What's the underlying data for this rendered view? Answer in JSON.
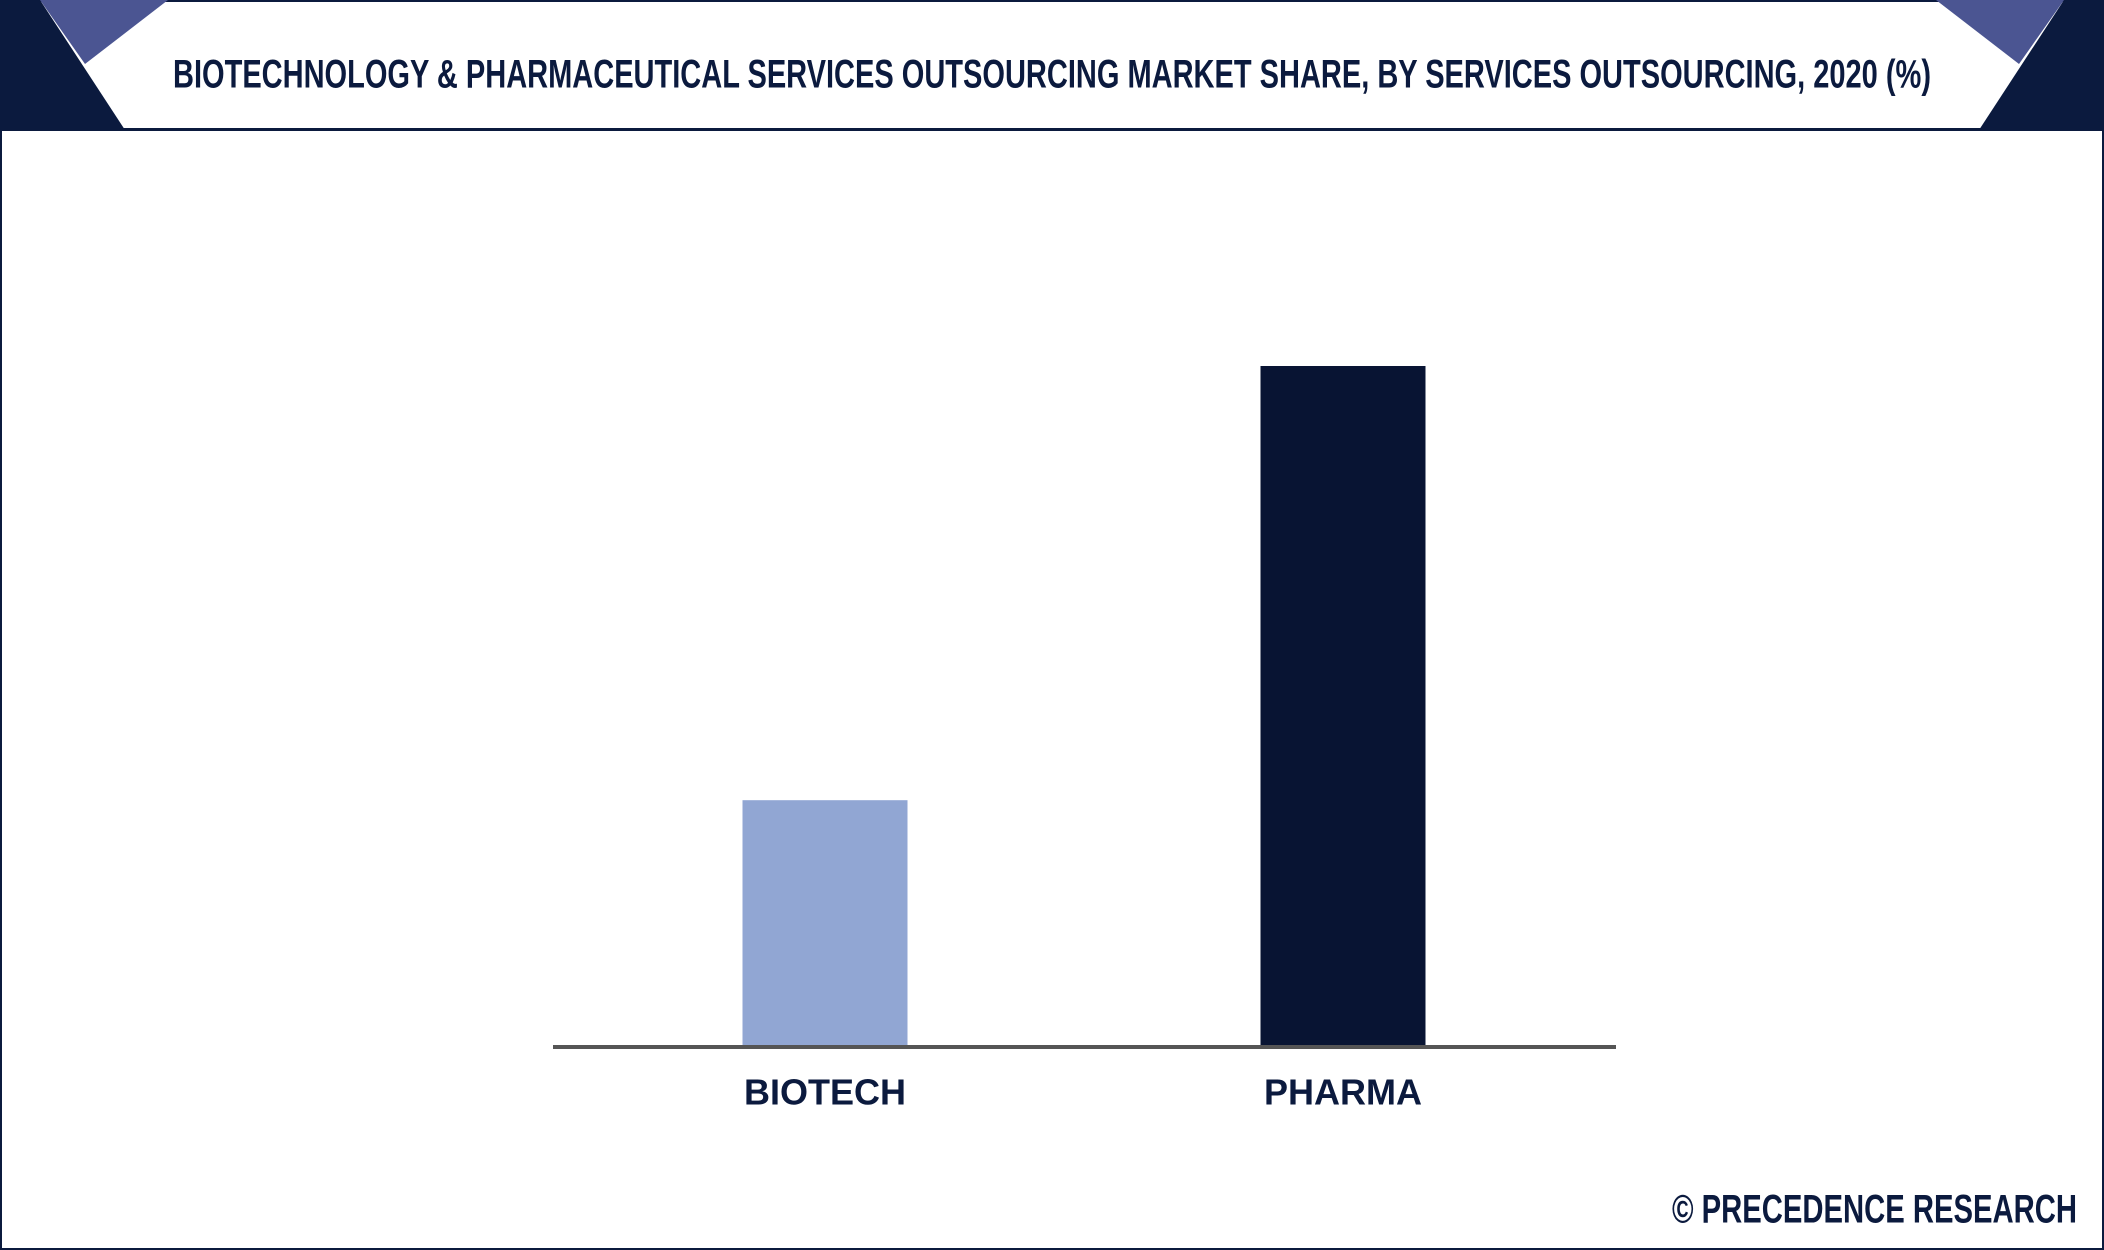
{
  "chart_data": {
    "type": "bar",
    "title": "BIOTECHNOLOGY & PHARMACEUTICAL SERVICES OUTSOURCING MARKET SHARE, BY SERVICES OUTSOURCING, 2020 (%)",
    "categories": [
      "BIOTECH",
      "PHARMA"
    ],
    "values": [
      26.5,
      73.5
    ],
    "colors": [
      "#91a6d3",
      "#081433"
    ],
    "credit": "© PRECEDENCE RESEARCH"
  }
}
